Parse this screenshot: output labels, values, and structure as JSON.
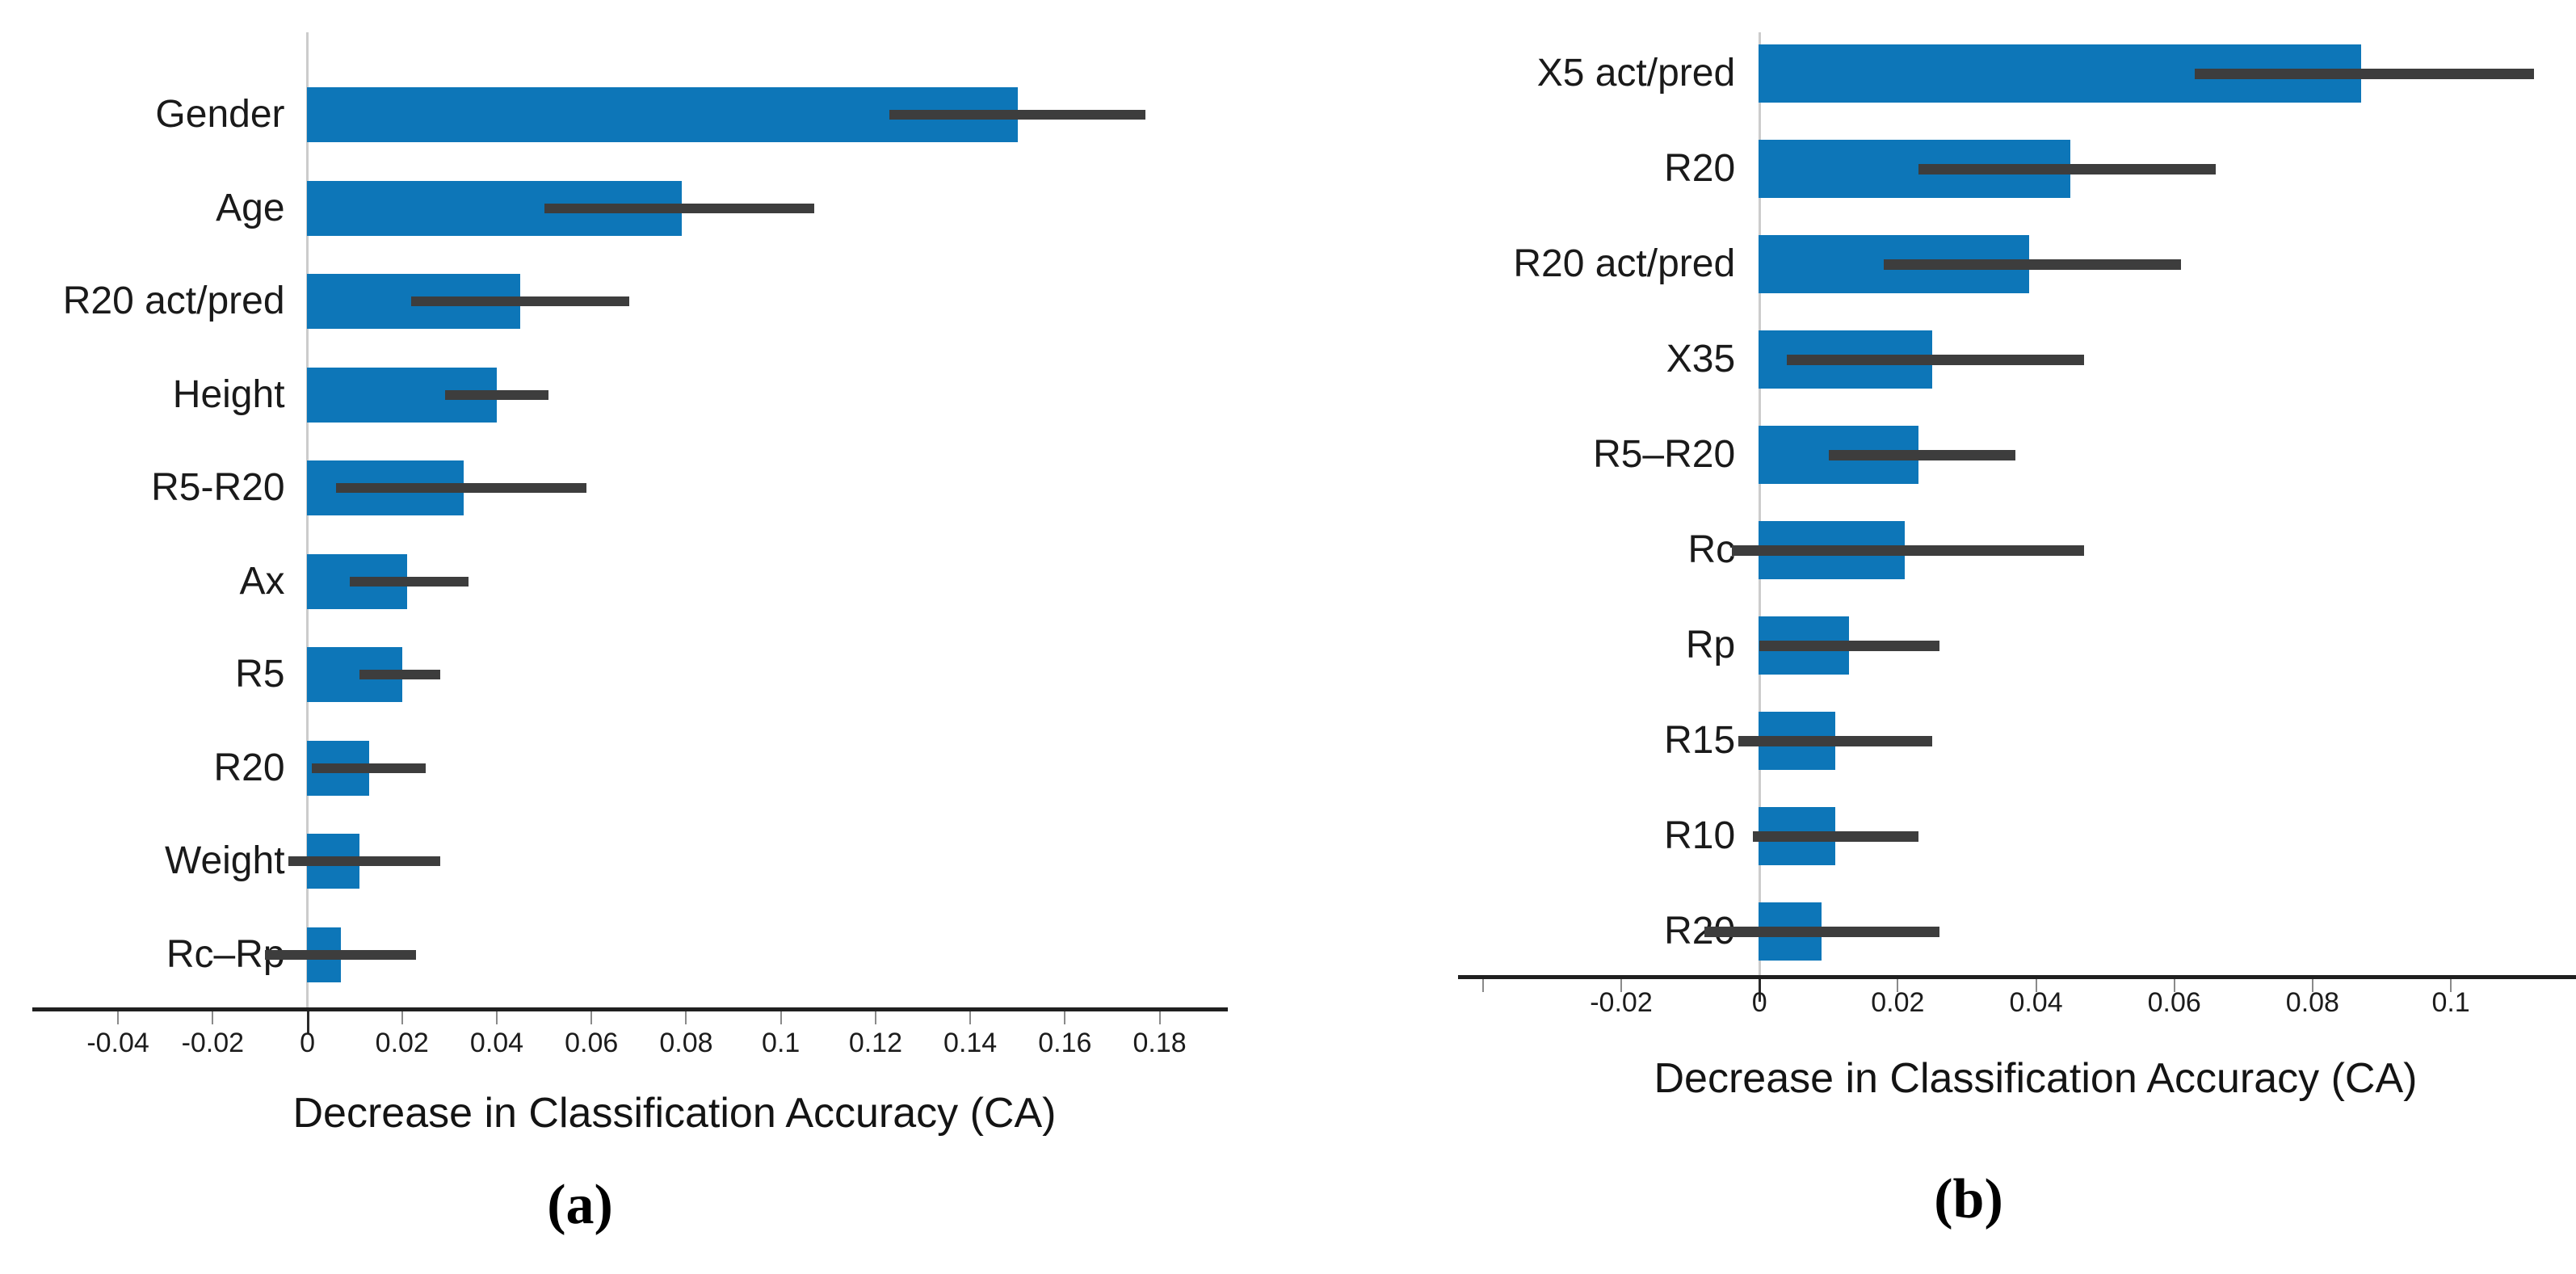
{
  "page": {
    "background": "#ffffff"
  },
  "colors": {
    "bar": "#0d76b8",
    "error_bar": "#3d3d3d",
    "axis_line": "#1f1f1f",
    "zero_gridline": "#cccccc",
    "tick_minor": "#8a8a8a",
    "tick_zero": "#2a2a2a",
    "text": "#1a1a1a"
  },
  "chart_data": [
    {
      "id": "a",
      "type": "bar",
      "orientation": "horizontal",
      "caption": "(a)",
      "xlabel": "Decrease in Classification Accuracy (CA)",
      "grid": false,
      "legend": null,
      "categories": [
        "Gender",
        "Age",
        "R20 act/pred",
        "Height",
        "R5-R20",
        "Ax",
        "R5",
        "R20",
        "Weight",
        "Rc–Rp"
      ],
      "values": [
        0.15,
        0.079,
        0.045,
        0.04,
        0.033,
        0.021,
        0.02,
        0.013,
        0.011,
        0.007
      ],
      "error_low": [
        0.123,
        0.05,
        0.022,
        0.029,
        0.006,
        0.009,
        0.011,
        0.001,
        -0.004,
        -0.009
      ],
      "error_high": [
        0.177,
        0.107,
        0.068,
        0.051,
        0.059,
        0.034,
        0.028,
        0.025,
        0.028,
        0.023
      ],
      "xlim": [
        -0.0581,
        0.1944
      ],
      "xticks": [
        {
          "v": -0.04,
          "label": "-0.04"
        },
        {
          "v": -0.02,
          "label": "-0.02"
        },
        {
          "v": 0,
          "label": "0"
        },
        {
          "v": 0.02,
          "label": "0.02"
        },
        {
          "v": 0.04,
          "label": "0.04"
        },
        {
          "v": 0.06,
          "label": "0.06"
        },
        {
          "v": 0.08,
          "label": "0.08"
        },
        {
          "v": 0.1,
          "label": "0.1"
        },
        {
          "v": 0.12,
          "label": "0.12"
        },
        {
          "v": 0.14,
          "label": "0.14"
        },
        {
          "v": 0.16,
          "label": "0.16"
        },
        {
          "v": 0.18,
          "label": "0.18"
        }
      ]
    },
    {
      "id": "b",
      "type": "bar",
      "orientation": "horizontal",
      "caption": "(b)",
      "xlabel": "Decrease in Classification Accuracy (CA)",
      "grid": false,
      "legend": null,
      "categories": [
        "X5 act/pred",
        "R20",
        "R20 act/pred",
        "X35",
        "R5–R20",
        "Rc",
        "Rp",
        "R15",
        "R10",
        "R20"
      ],
      "values": [
        0.087,
        0.045,
        0.039,
        0.025,
        0.023,
        0.021,
        0.013,
        0.011,
        0.011,
        0.009
      ],
      "error_low": [
        0.063,
        0.023,
        0.018,
        0.004,
        0.01,
        -0.004,
        0.0,
        -0.003,
        -0.001,
        -0.008
      ],
      "error_high": [
        0.112,
        0.066,
        0.061,
        0.047,
        0.037,
        0.047,
        0.026,
        0.025,
        0.023,
        0.026
      ],
      "xlim": [
        -0.0436,
        0.1181
      ],
      "xticks": [
        {
          "v": -0.04,
          "label": ""
        },
        {
          "v": -0.02,
          "label": "-0.02"
        },
        {
          "v": 0,
          "label": "0"
        },
        {
          "v": 0.02,
          "label": "0.02"
        },
        {
          "v": 0.04,
          "label": "0.04"
        },
        {
          "v": 0.06,
          "label": "0.06"
        },
        {
          "v": 0.08,
          "label": "0.08"
        },
        {
          "v": 0.1,
          "label": "0.1"
        }
      ]
    }
  ]
}
